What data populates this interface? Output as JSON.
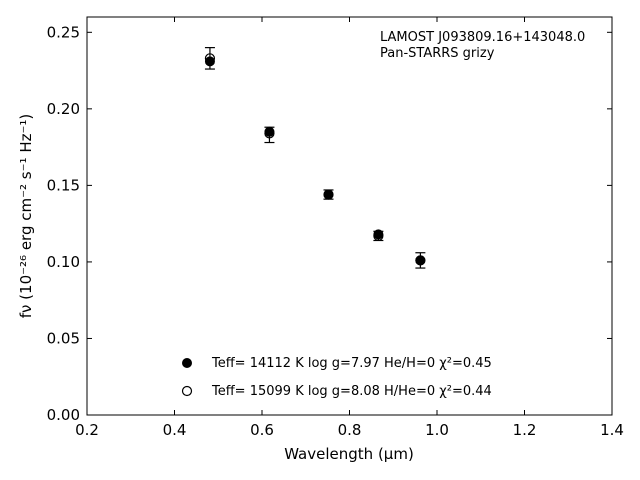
{
  "chart_data": {
    "type": "scatter",
    "annotation_lines": [
      "LAMOST J093809.16+143048.0",
      "Pan-STARRS grizy"
    ],
    "xlabel": "Wavelength (μm)",
    "ylabel": "fν (10⁻²⁶ erg cm⁻² s⁻¹ Hz⁻¹)",
    "xlim": [
      0.2,
      1.4
    ],
    "ylim": [
      0.0,
      0.26
    ],
    "xticks": [
      0.2,
      0.4,
      0.6,
      0.8,
      1.0,
      1.2,
      1.4
    ],
    "xtick_labels": [
      "0.2",
      "0.4",
      "0.6",
      "0.8",
      "1.0",
      "1.2",
      "1.4"
    ],
    "yticks": [
      0.0,
      0.05,
      0.1,
      0.15,
      0.2,
      0.25
    ],
    "ytick_labels": [
      "0.00",
      "0.05",
      "0.10",
      "0.15",
      "0.20",
      "0.25"
    ],
    "grid": false,
    "observed": {
      "x": [
        0.481,
        0.617,
        0.752,
        0.866,
        0.962
      ],
      "y": [
        0.233,
        0.183,
        0.144,
        0.117,
        0.101
      ],
      "yerr": [
        0.007,
        0.005,
        0.003,
        0.003,
        0.005
      ]
    },
    "series": [
      {
        "name": "Teff= 14112 K  log g=7.97  He/H=0  χ²=0.45",
        "marker": "filled",
        "x": [
          0.481,
          0.617,
          0.752,
          0.866,
          0.962
        ],
        "y": [
          0.231,
          0.185,
          0.144,
          0.118,
          0.101
        ]
      },
      {
        "name": "Teff= 15099 K  log g=8.08  H/He=0  χ²=0.44",
        "marker": "open",
        "x": [
          0.481,
          0.617,
          0.752,
          0.866,
          0.962
        ],
        "y": [
          0.233,
          0.184,
          0.144,
          0.117,
          0.101
        ]
      }
    ],
    "legend_placement": "lower-center",
    "colors": {
      "marker": "#000000",
      "axis": "#000000"
    }
  }
}
